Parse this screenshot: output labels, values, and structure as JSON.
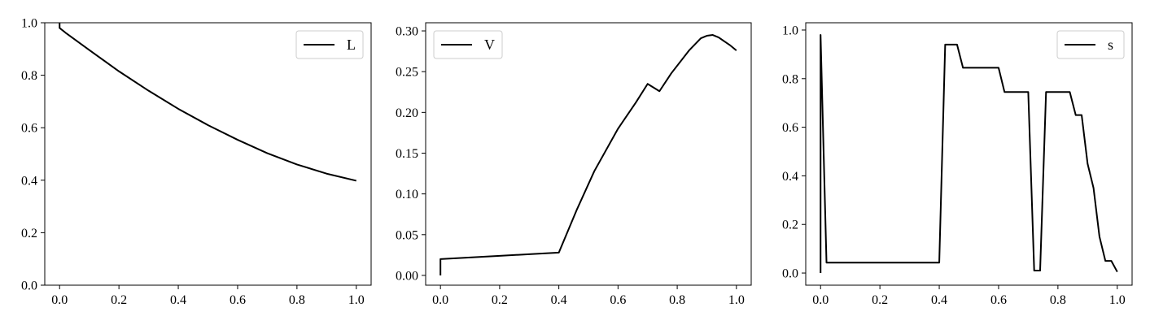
{
  "chart_data": [
    {
      "type": "line",
      "legend": "top-right",
      "xlim": [
        -0.05,
        1.05
      ],
      "ylim": [
        0.0,
        1.0
      ],
      "xticks": [
        0.0,
        0.2,
        0.4,
        0.6,
        0.8,
        1.0
      ],
      "xtick_labels": [
        "0.0",
        "0.2",
        "0.4",
        "0.6",
        "0.8",
        "1.0"
      ],
      "yticks": [
        0.0,
        0.2,
        0.4,
        0.6,
        0.8,
        1.0
      ],
      "ytick_labels": [
        "0.0",
        "0.2",
        "0.4",
        "0.6",
        "0.8",
        "1.0"
      ],
      "series": [
        {
          "name": "L",
          "color": "#000000",
          "x": [
            0.0,
            0.0,
            0.02,
            0.1,
            0.2,
            0.3,
            0.4,
            0.5,
            0.6,
            0.7,
            0.8,
            0.9,
            1.0
          ],
          "y": [
            1.0,
            0.98,
            0.962,
            0.896,
            0.815,
            0.741,
            0.672,
            0.61,
            0.554,
            0.503,
            0.46,
            0.425,
            0.398
          ]
        }
      ]
    },
    {
      "type": "line",
      "legend": "top-left",
      "xlim": [
        -0.05,
        1.05
      ],
      "ylim": [
        -0.012,
        0.31
      ],
      "xticks": [
        0.0,
        0.2,
        0.4,
        0.6,
        0.8,
        1.0
      ],
      "xtick_labels": [
        "0.0",
        "0.2",
        "0.4",
        "0.6",
        "0.8",
        "1.0"
      ],
      "yticks": [
        0.0,
        0.05,
        0.1,
        0.15,
        0.2,
        0.25,
        0.3
      ],
      "ytick_labels": [
        "0.00",
        "0.05",
        "0.10",
        "0.15",
        "0.20",
        "0.25",
        "0.30"
      ],
      "series": [
        {
          "name": "V",
          "color": "#000000",
          "x": [
            0.0,
            0.0,
            0.1,
            0.2,
            0.3,
            0.4,
            0.46,
            0.52,
            0.6,
            0.66,
            0.7,
            0.74,
            0.78,
            0.84,
            0.88,
            0.9,
            0.92,
            0.94,
            0.98,
            1.0
          ],
          "y": [
            0.0,
            0.02,
            0.022,
            0.024,
            0.026,
            0.028,
            0.08,
            0.128,
            0.18,
            0.212,
            0.235,
            0.226,
            0.248,
            0.276,
            0.291,
            0.294,
            0.295,
            0.292,
            0.282,
            0.276
          ]
        }
      ]
    },
    {
      "type": "line",
      "legend": "top-right",
      "xlim": [
        -0.05,
        1.05
      ],
      "ylim": [
        -0.05,
        1.03
      ],
      "xticks": [
        0.0,
        0.2,
        0.4,
        0.6,
        0.8,
        1.0
      ],
      "xtick_labels": [
        "0.0",
        "0.2",
        "0.4",
        "0.6",
        "0.8",
        "1.0"
      ],
      "yticks": [
        0.0,
        0.2,
        0.4,
        0.6,
        0.8,
        1.0
      ],
      "ytick_labels": [
        "0.0",
        "0.2",
        "0.4",
        "0.6",
        "0.8",
        "1.0"
      ],
      "series": [
        {
          "name": "s",
          "color": "#000000",
          "x": [
            0.0,
            0.0,
            0.02,
            0.4,
            0.42,
            0.46,
            0.48,
            0.6,
            0.62,
            0.7,
            0.72,
            0.74,
            0.76,
            0.84,
            0.86,
            0.88,
            0.9,
            0.92,
            0.94,
            0.96,
            0.98,
            1.0
          ],
          "y": [
            0.0,
            0.98,
            0.043,
            0.043,
            0.94,
            0.94,
            0.845,
            0.845,
            0.745,
            0.745,
            0.01,
            0.01,
            0.745,
            0.745,
            0.65,
            0.65,
            0.45,
            0.35,
            0.15,
            0.05,
            0.05,
            0.005
          ]
        }
      ]
    }
  ]
}
